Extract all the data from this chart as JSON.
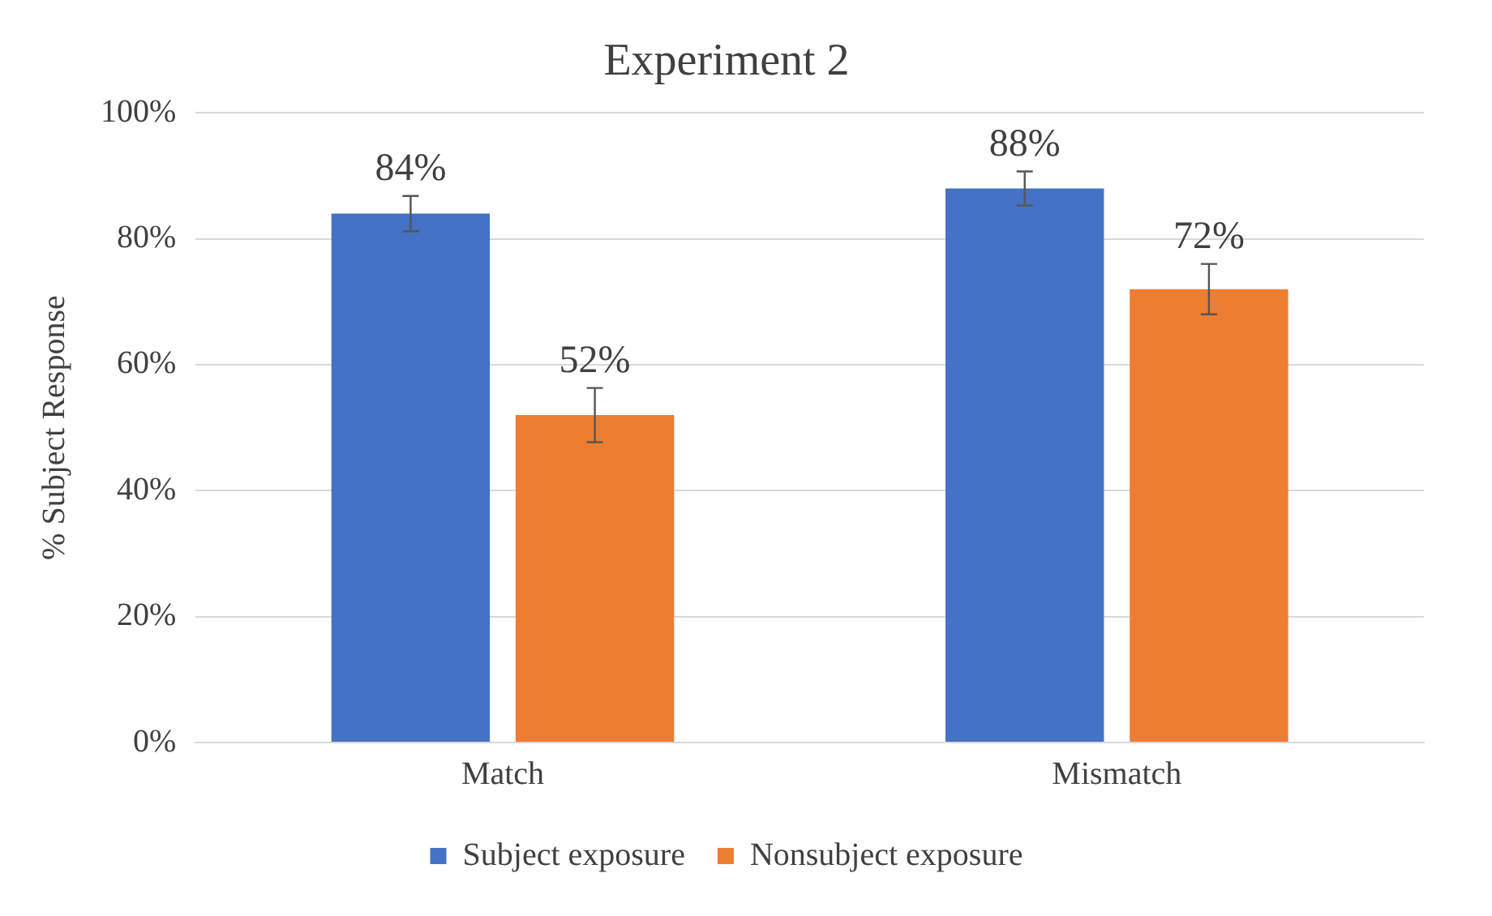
{
  "chart_data": {
    "type": "bar",
    "title": "Experiment 2",
    "ylabel": "% Subject Response",
    "categories": [
      "Match",
      "Mismatch"
    ],
    "series": [
      {
        "name": "Subject exposure",
        "color": "#4472c4",
        "values": [
          84,
          88
        ],
        "errors": [
          2.8,
          2.7
        ],
        "value_labels": [
          "84%",
          "88%"
        ]
      },
      {
        "name": "Nonsubject exposure",
        "color": "#ed7d31",
        "values": [
          52,
          72
        ],
        "errors": [
          4.3,
          4
        ],
        "value_labels": [
          "52%",
          "72%"
        ]
      }
    ],
    "ylim": [
      0,
      100
    ],
    "yticks": [
      {
        "value": 0,
        "label": "0%"
      },
      {
        "value": 20,
        "label": "20%"
      },
      {
        "value": 40,
        "label": "40%"
      },
      {
        "value": 60,
        "label": "60%"
      },
      {
        "value": 80,
        "label": "80%"
      },
      {
        "value": 100,
        "label": "100%"
      }
    ],
    "grid": "y",
    "legend": "bottom"
  }
}
